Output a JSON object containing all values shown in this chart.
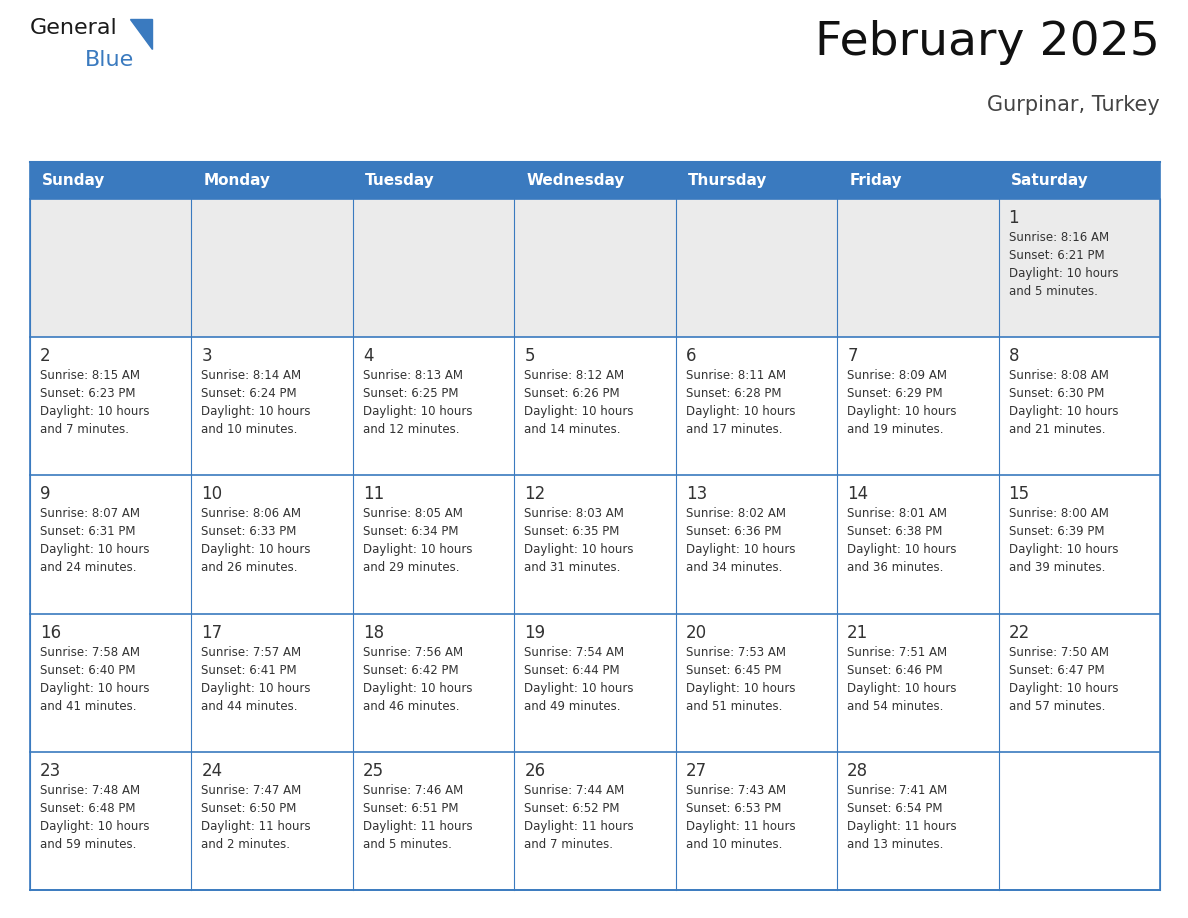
{
  "title": "February 2025",
  "subtitle": "Gurpinar, Turkey",
  "header_color": "#3a7abf",
  "header_text_color": "#ffffff",
  "days_of_week": [
    "Sunday",
    "Monday",
    "Tuesday",
    "Wednesday",
    "Thursday",
    "Friday",
    "Saturday"
  ],
  "cell_bg_white": "#ffffff",
  "cell_bg_gray": "#ebebeb",
  "day_num_color": "#333333",
  "info_text_color": "#333333",
  "border_color": "#3a7abf",
  "calendar_data": [
    [
      {
        "day": null,
        "sunrise": null,
        "sunset": null,
        "daylight": null
      },
      {
        "day": null,
        "sunrise": null,
        "sunset": null,
        "daylight": null
      },
      {
        "day": null,
        "sunrise": null,
        "sunset": null,
        "daylight": null
      },
      {
        "day": null,
        "sunrise": null,
        "sunset": null,
        "daylight": null
      },
      {
        "day": null,
        "sunrise": null,
        "sunset": null,
        "daylight": null
      },
      {
        "day": null,
        "sunrise": null,
        "sunset": null,
        "daylight": null
      },
      {
        "day": 1,
        "sunrise": "8:16 AM",
        "sunset": "6:21 PM",
        "daylight": "10 hours\nand 5 minutes."
      }
    ],
    [
      {
        "day": 2,
        "sunrise": "8:15 AM",
        "sunset": "6:23 PM",
        "daylight": "10 hours\nand 7 minutes."
      },
      {
        "day": 3,
        "sunrise": "8:14 AM",
        "sunset": "6:24 PM",
        "daylight": "10 hours\nand 10 minutes."
      },
      {
        "day": 4,
        "sunrise": "8:13 AM",
        "sunset": "6:25 PM",
        "daylight": "10 hours\nand 12 minutes."
      },
      {
        "day": 5,
        "sunrise": "8:12 AM",
        "sunset": "6:26 PM",
        "daylight": "10 hours\nand 14 minutes."
      },
      {
        "day": 6,
        "sunrise": "8:11 AM",
        "sunset": "6:28 PM",
        "daylight": "10 hours\nand 17 minutes."
      },
      {
        "day": 7,
        "sunrise": "8:09 AM",
        "sunset": "6:29 PM",
        "daylight": "10 hours\nand 19 minutes."
      },
      {
        "day": 8,
        "sunrise": "8:08 AM",
        "sunset": "6:30 PM",
        "daylight": "10 hours\nand 21 minutes."
      }
    ],
    [
      {
        "day": 9,
        "sunrise": "8:07 AM",
        "sunset": "6:31 PM",
        "daylight": "10 hours\nand 24 minutes."
      },
      {
        "day": 10,
        "sunrise": "8:06 AM",
        "sunset": "6:33 PM",
        "daylight": "10 hours\nand 26 minutes."
      },
      {
        "day": 11,
        "sunrise": "8:05 AM",
        "sunset": "6:34 PM",
        "daylight": "10 hours\nand 29 minutes."
      },
      {
        "day": 12,
        "sunrise": "8:03 AM",
        "sunset": "6:35 PM",
        "daylight": "10 hours\nand 31 minutes."
      },
      {
        "day": 13,
        "sunrise": "8:02 AM",
        "sunset": "6:36 PM",
        "daylight": "10 hours\nand 34 minutes."
      },
      {
        "day": 14,
        "sunrise": "8:01 AM",
        "sunset": "6:38 PM",
        "daylight": "10 hours\nand 36 minutes."
      },
      {
        "day": 15,
        "sunrise": "8:00 AM",
        "sunset": "6:39 PM",
        "daylight": "10 hours\nand 39 minutes."
      }
    ],
    [
      {
        "day": 16,
        "sunrise": "7:58 AM",
        "sunset": "6:40 PM",
        "daylight": "10 hours\nand 41 minutes."
      },
      {
        "day": 17,
        "sunrise": "7:57 AM",
        "sunset": "6:41 PM",
        "daylight": "10 hours\nand 44 minutes."
      },
      {
        "day": 18,
        "sunrise": "7:56 AM",
        "sunset": "6:42 PM",
        "daylight": "10 hours\nand 46 minutes."
      },
      {
        "day": 19,
        "sunrise": "7:54 AM",
        "sunset": "6:44 PM",
        "daylight": "10 hours\nand 49 minutes."
      },
      {
        "day": 20,
        "sunrise": "7:53 AM",
        "sunset": "6:45 PM",
        "daylight": "10 hours\nand 51 minutes."
      },
      {
        "day": 21,
        "sunrise": "7:51 AM",
        "sunset": "6:46 PM",
        "daylight": "10 hours\nand 54 minutes."
      },
      {
        "day": 22,
        "sunrise": "7:50 AM",
        "sunset": "6:47 PM",
        "daylight": "10 hours\nand 57 minutes."
      }
    ],
    [
      {
        "day": 23,
        "sunrise": "7:48 AM",
        "sunset": "6:48 PM",
        "daylight": "10 hours\nand 59 minutes."
      },
      {
        "day": 24,
        "sunrise": "7:47 AM",
        "sunset": "6:50 PM",
        "daylight": "11 hours\nand 2 minutes."
      },
      {
        "day": 25,
        "sunrise": "7:46 AM",
        "sunset": "6:51 PM",
        "daylight": "11 hours\nand 5 minutes."
      },
      {
        "day": 26,
        "sunrise": "7:44 AM",
        "sunset": "6:52 PM",
        "daylight": "11 hours\nand 7 minutes."
      },
      {
        "day": 27,
        "sunrise": "7:43 AM",
        "sunset": "6:53 PM",
        "daylight": "11 hours\nand 10 minutes."
      },
      {
        "day": 28,
        "sunrise": "7:41 AM",
        "sunset": "6:54 PM",
        "daylight": "11 hours\nand 13 minutes."
      },
      {
        "day": null,
        "sunrise": null,
        "sunset": null,
        "daylight": null
      }
    ]
  ],
  "fig_width": 11.88,
  "fig_height": 9.18,
  "title_fontsize": 34,
  "subtitle_fontsize": 15,
  "header_fontsize": 11,
  "day_num_fontsize": 12,
  "info_fontsize": 8.5
}
